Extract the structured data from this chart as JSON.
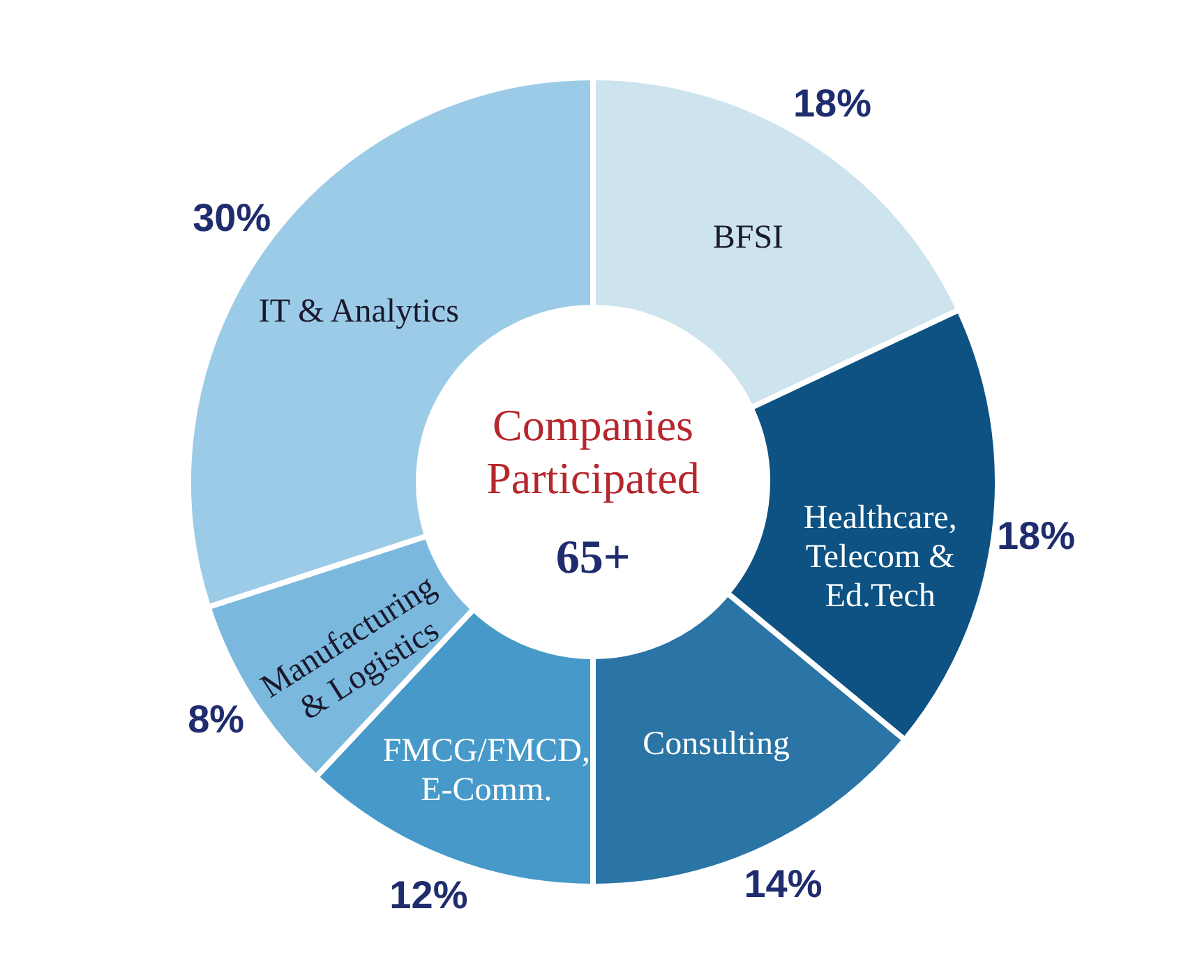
{
  "chart_data": {
    "type": "donut",
    "categories": [
      "BFSI",
      "Healthcare, Telecom & Ed.Tech",
      "Consulting",
      "FMCG/FMCD, E-Comm.",
      "Manufacturing & Logistics",
      "IT & Analytics"
    ],
    "values": [
      18,
      18,
      14,
      12,
      8,
      30
    ],
    "value_labels": [
      "18%",
      "18%",
      "14%",
      "12%",
      "8%",
      "30%"
    ],
    "colors": [
      "#cde3ee",
      "#0d5282",
      "#2a74a6",
      "#4699c8",
      "#7bb8de",
      "#9ccbe8"
    ],
    "annotations": [
      "Companies Participated",
      "65+"
    ]
  }
}
